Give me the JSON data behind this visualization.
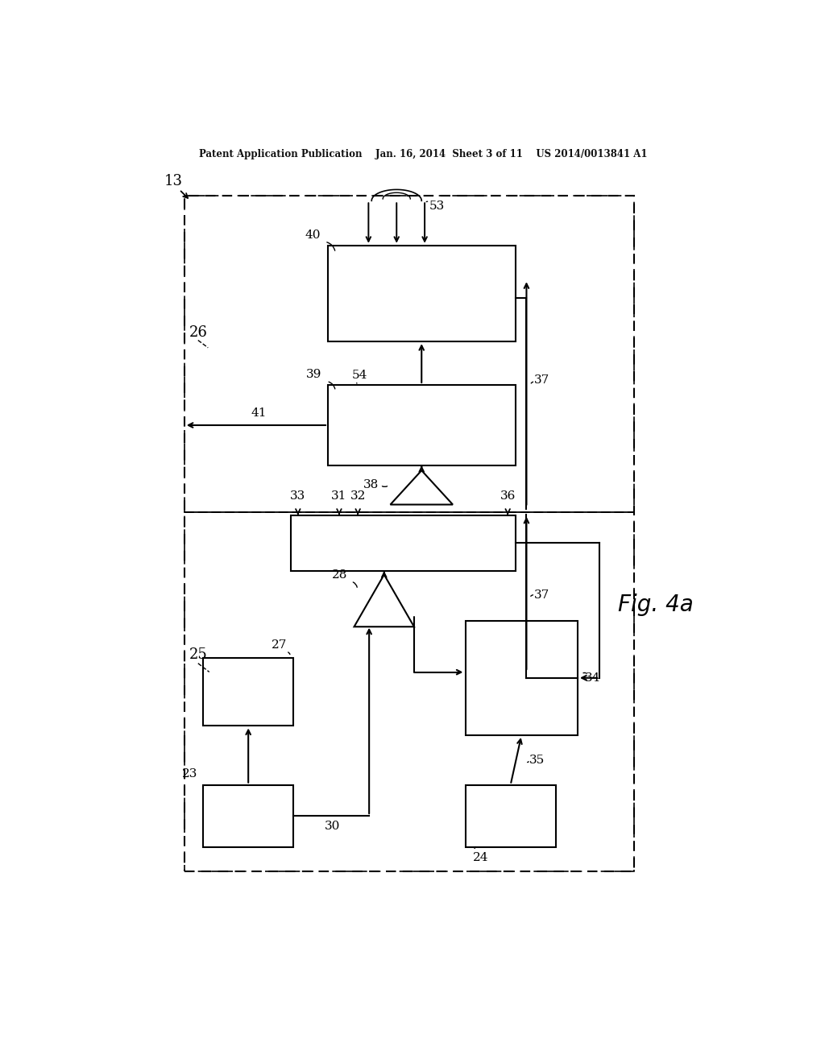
{
  "background_color": "#ffffff",
  "header_text": "Patent Application Publication    Jan. 16, 2014  Sheet 3 of 11    US 2014/0013841 A1",
  "fig_label": "Fig. 4a",
  "label_13": "13",
  "label_26": "26",
  "label_25": "25",
  "label_37": "37",
  "label_41": "41",
  "label_53": "53",
  "label_40": "40",
  "label_54": "54",
  "label_39": "39",
  "label_38": "38",
  "label_33": "33",
  "label_31": "31",
  "label_32": "32",
  "label_36": "36",
  "label_27": "27",
  "label_28": "28",
  "label_23": "23",
  "label_30": "30",
  "label_34": "34",
  "label_35": "35",
  "label_24": "24"
}
